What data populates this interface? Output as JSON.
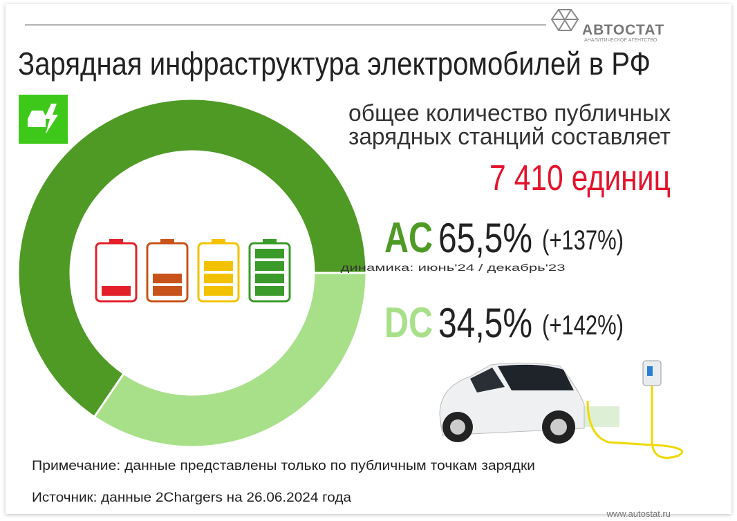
{
  "chart_data": {
    "type": "pie",
    "title": "Зарядная инфраструктура электромобилей в РФ",
    "subtitle": [
      "общее количество публичных",
      "зарядных станций составляет"
    ],
    "total": "7 410 единиц",
    "categories": [
      "AC",
      "DC"
    ],
    "values": [
      65.5,
      34.5
    ],
    "value_labels": [
      "65,5%",
      "34,5%"
    ],
    "colors": [
      "#4f9a25",
      "#a8e08a"
    ],
    "annotations": {
      "changes": [
        "(+137%)",
        "(+142%)"
      ],
      "period": "динамика: июнь'24 / декабрь'23"
    },
    "note": "Примечание: данные представлены только по публичным точкам зарядки",
    "source": "Источник: данные 2Chargers на 26.06.2024 года",
    "logo": {
      "name": "АВТОСТАТ",
      "tagline": "АНАЛИТИЧЕСКОЕ АГЕНТСТВО",
      "url": "www.autostat.ru"
    }
  }
}
